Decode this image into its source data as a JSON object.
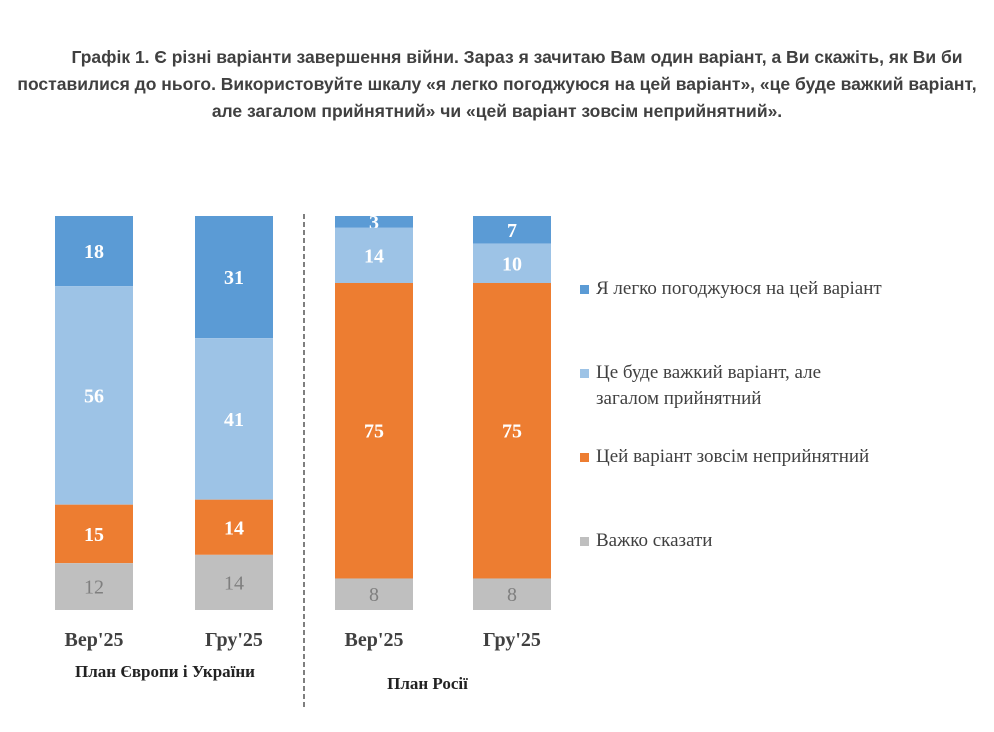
{
  "title": "Графік 1. Є різні варіанти завершення війни. Зараз я зачитаю Вам один варіант, а Ви скажіть, як Ви би поставилися до нього. Використовуйте шкалу «я легко погоджуюся на цей варіант», «це буде важкий варіант, але загалом прийнятний» чи «цей варіант зовсім неприйнятний».",
  "chart_data": {
    "type": "bar",
    "stacked": true,
    "categories": [
      "Вер'25",
      "Гру'25",
      "Вер'25",
      "Гру'25"
    ],
    "groups": [
      {
        "label": "План Європи і України",
        "categories": [
          0,
          1
        ]
      },
      {
        "label": "План Росії",
        "categories": [
          2,
          3
        ]
      }
    ],
    "series": [
      {
        "name": "Я легко погоджуюся на цей варіант",
        "color": "#5B9BD5",
        "label_color": "#ffffff",
        "values": [
          18,
          31,
          3,
          7
        ]
      },
      {
        "name": "Це буде важкий варіант, але загалом прийнятний",
        "color": "#9DC3E6",
        "label_color": "#ffffff",
        "values": [
          56,
          41,
          14,
          10
        ]
      },
      {
        "name": "Цей варіант зовсім неприйнятний",
        "color": "#ED7D31",
        "label_color": "#ffffff",
        "values": [
          15,
          14,
          75,
          75
        ]
      },
      {
        "name": "Важко сказати",
        "color": "#BFBFBF",
        "label_color": "#7f7f7f",
        "values": [
          12,
          14,
          8,
          8
        ]
      }
    ],
    "legend_position": "right",
    "grid": false,
    "axes_visible": false,
    "group_separator": "dashed"
  }
}
